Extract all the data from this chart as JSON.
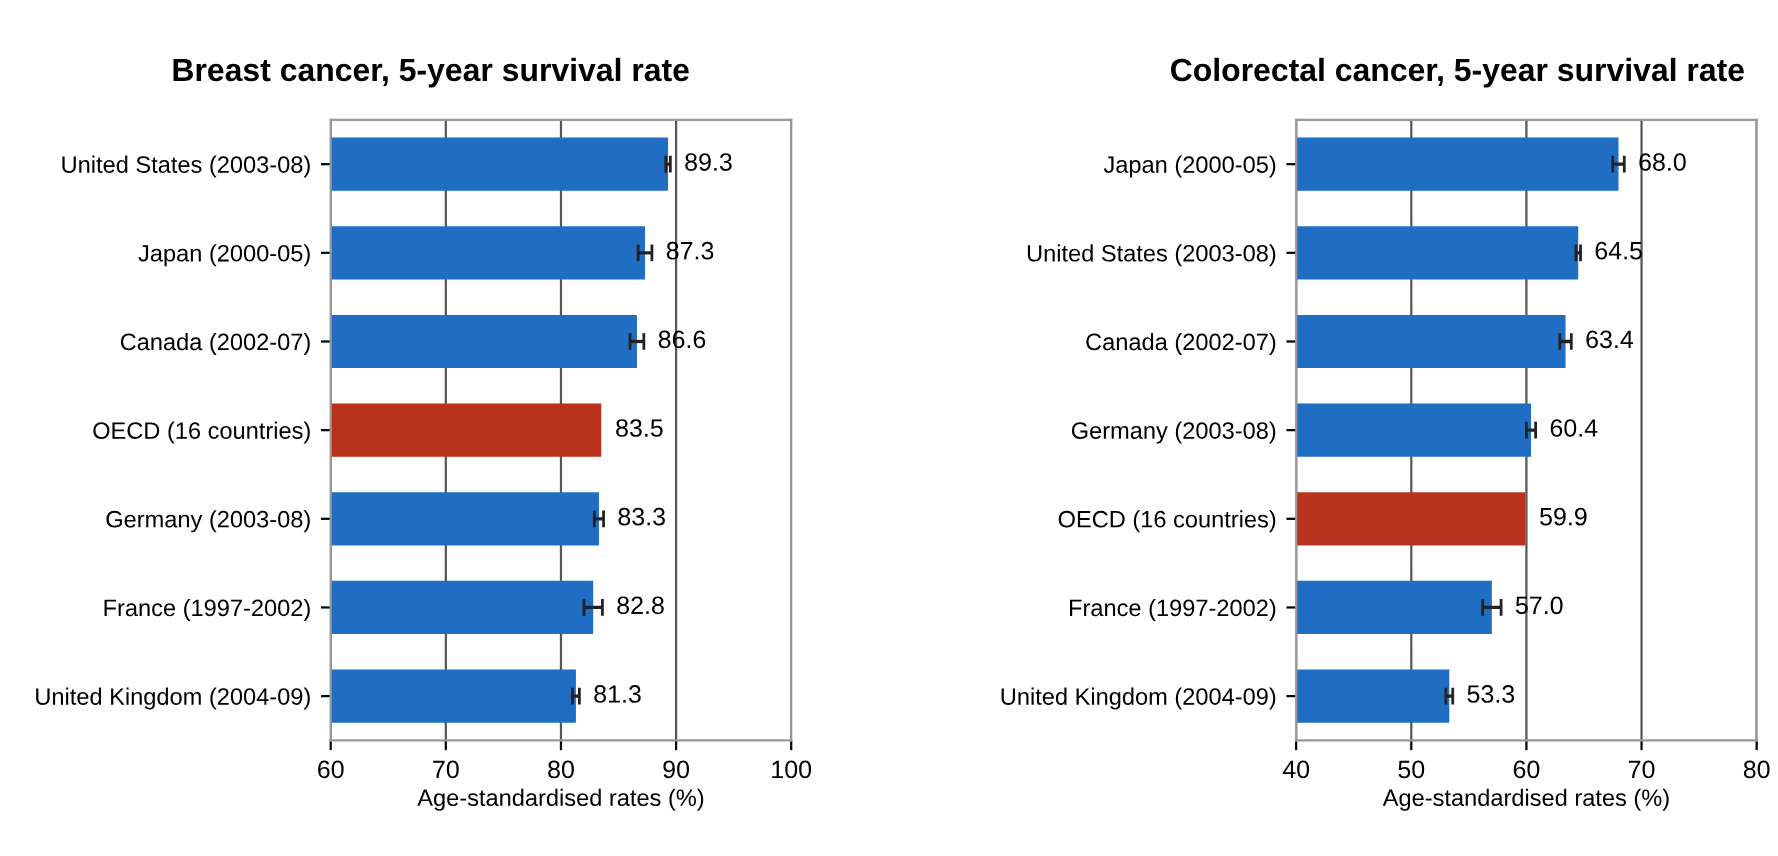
{
  "chart_data": [
    {
      "type": "bar",
      "orientation": "horizontal",
      "title": "Breast cancer, 5-year survival rate",
      "xlabel": "Age-standardised rates (%)",
      "categories": [
        "United States (2003-08)",
        "Japan (2000-05)",
        "Canada (2002-07)",
        "OECD (16 countries)",
        "Germany (2003-08)",
        "France (1997-2002)",
        "United Kingdom (2004-09)"
      ],
      "values": [
        89.3,
        87.3,
        86.6,
        83.5,
        83.3,
        82.8,
        81.3
      ],
      "errors": [
        0.2,
        0.6,
        0.6,
        null,
        0.4,
        0.8,
        0.3
      ],
      "colors": [
        "#1f6ec4",
        "#1f6ec4",
        "#1f6ec4",
        "#b8321c",
        "#1f6ec4",
        "#1f6ec4",
        "#1f6ec4"
      ],
      "xlim": [
        60,
        100
      ],
      "xticks": [
        60,
        70,
        80,
        90,
        100
      ],
      "grid": "x",
      "data_labels": true
    },
    {
      "type": "bar",
      "orientation": "horizontal",
      "title": "Colorectal cancer, 5-year survival rate",
      "xlabel": "Age-standardised rates (%)",
      "categories": [
        "Japan (2000-05)",
        "United States (2003-08)",
        "Canada (2002-07)",
        "Germany (2003-08)",
        "OECD (16 countries)",
        "France (1997-2002)",
        "United Kingdom (2004-09)"
      ],
      "values": [
        68.0,
        64.5,
        63.4,
        60.4,
        59.9,
        57.0,
        53.3
      ],
      "value_labels": [
        "68.0",
        "64.5",
        "63.4",
        "60.4",
        "59.9",
        "57.0",
        "53.3"
      ],
      "errors": [
        0.5,
        0.2,
        0.5,
        0.4,
        null,
        0.8,
        0.3
      ],
      "colors": [
        "#1f6ec4",
        "#1f6ec4",
        "#1f6ec4",
        "#1f6ec4",
        "#b8321c",
        "#1f6ec4",
        "#1f6ec4"
      ],
      "xlim": [
        40,
        80
      ],
      "xticks": [
        40,
        50,
        60,
        70,
        80
      ],
      "grid": "x"
    }
  ]
}
